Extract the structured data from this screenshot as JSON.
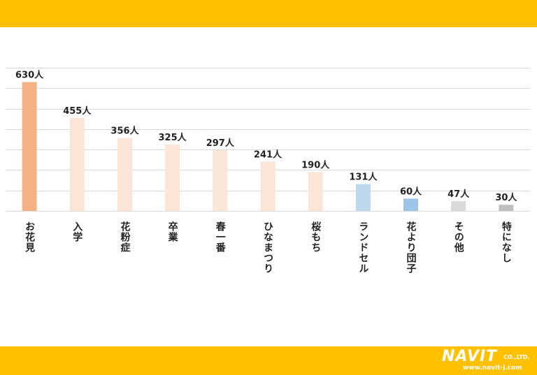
{
  "colors": {
    "band": "#FFC000",
    "gridline": "#D9D9D9",
    "bar_highlight": "#F4B183",
    "bar_normal": "#FBE5D6",
    "bar_blue_light": "#BDD7EE",
    "bar_blue": "#9DC3E6",
    "bar_gray_light": "#D9D9D9",
    "bar_gray": "#BFBFBF"
  },
  "logo": {
    "main": "NAVIT",
    "suffix": "CO.,LTD.",
    "url": "www.navit-j.com"
  },
  "chart_data": {
    "type": "bar",
    "categories": [
      "お花見",
      "入学",
      "花粉症",
      "卒業",
      "春一番",
      "ひなまつり",
      "桜もち",
      "ランドセル",
      "花より団子",
      "その他",
      "特になし"
    ],
    "values": [
      630,
      455,
      356,
      325,
      297,
      241,
      190,
      131,
      60,
      47,
      30
    ],
    "value_labels": [
      "630人",
      "455人",
      "356人",
      "325人",
      "297人",
      "241人",
      "190人",
      "131人",
      "60人",
      "47人",
      "30人"
    ],
    "bar_colors": [
      "#F4B183",
      "#FBE5D6",
      "#FBE5D6",
      "#FBE5D6",
      "#FBE5D6",
      "#FBE5D6",
      "#FBE5D6",
      "#BDD7EE",
      "#9DC3E6",
      "#D9D9D9",
      "#BFBFBF"
    ],
    "ylim": [
      0,
      700
    ],
    "grid": true,
    "title": "",
    "xlabel": "",
    "ylabel": ""
  }
}
